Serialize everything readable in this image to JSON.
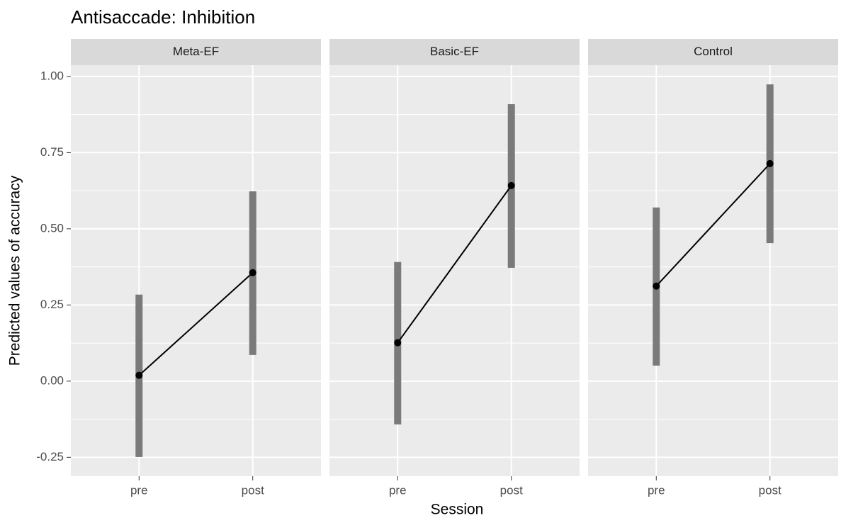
{
  "chart_data": {
    "type": "pointrange",
    "title": "Antisaccade: Inhibition",
    "xlabel": "Session",
    "ylabel": "Predicted values of accuracy",
    "categories": [
      "pre",
      "post"
    ],
    "ylim": [
      -0.312,
      1.037
    ],
    "yticks": [
      -0.25,
      {
        "value": 0,
        "label": "0.00"
      },
      0.25,
      {
        "value": 0.5,
        "label": "0.50"
      },
      0.75,
      {
        "value": 1,
        "label": "1.00"
      }
    ],
    "grid": true,
    "color": "#000000",
    "range_color": "#7a7a7a",
    "panels": [
      {
        "name": "Meta-EF",
        "values": [
          0.019,
          0.356
        ],
        "lower": [
          -0.249,
          0.086
        ],
        "upper": [
          0.284,
          0.623
        ]
      },
      {
        "name": "Basic-EF",
        "values": [
          0.126,
          0.642
        ],
        "lower": [
          -0.142,
          0.372
        ],
        "upper": [
          0.391,
          0.909
        ]
      },
      {
        "name": "Control",
        "values": [
          0.312,
          0.714
        ],
        "lower": [
          0.051,
          0.453
        ],
        "upper": [
          0.57,
          0.974
        ]
      }
    ]
  }
}
